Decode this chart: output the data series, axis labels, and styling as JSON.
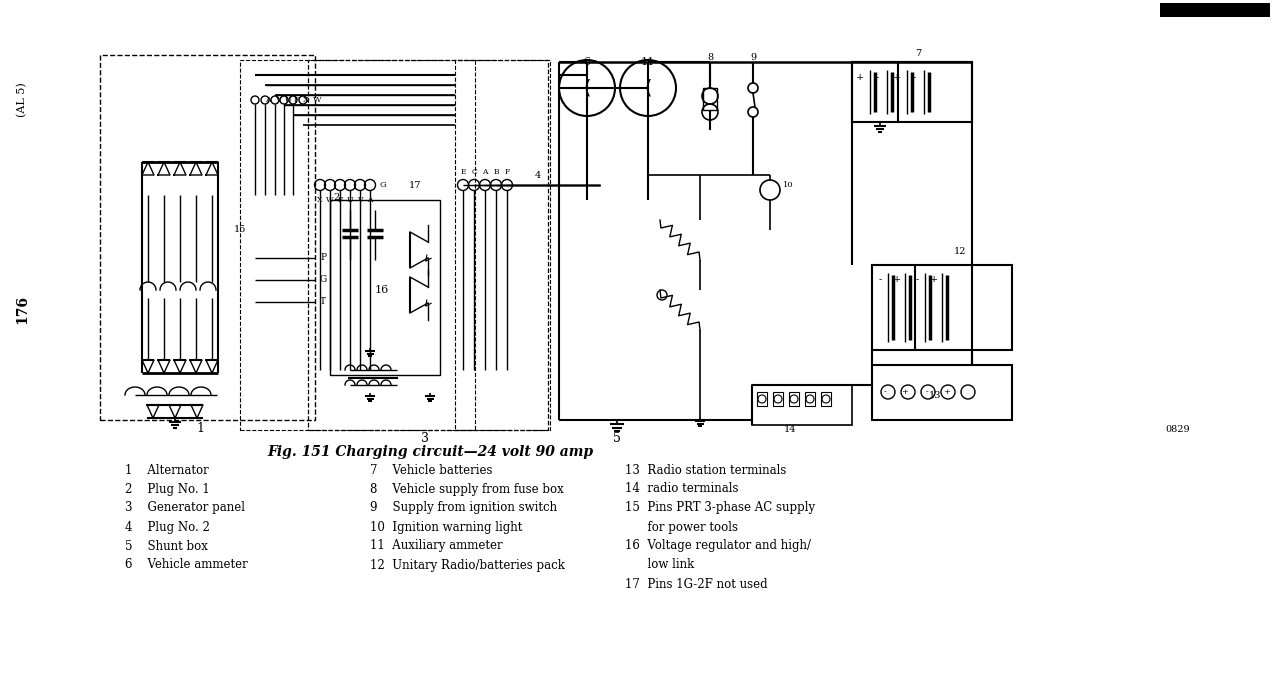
{
  "title": "Fig. 151 Charging circuit—24 volt 90 amp",
  "page_label": "176",
  "side_label": "(AL 5)",
  "bg_color": "#ffffff",
  "legend_col1": [
    "1    Alternator",
    "2    Plug No. 1",
    "3    Generator panel",
    "4    Plug No. 2",
    "5    Shunt box",
    "6    Vehicle ammeter"
  ],
  "legend_col2": [
    "7    Vehicle batteries",
    "8    Vehicle supply from fuse box",
    "9    Supply from ignition switch",
    "10  Ignition warning light",
    "11  Auxiliary ammeter",
    "12  Unitary Radio/batteries pack"
  ],
  "legend_col3": [
    "13  Radio station terminals",
    "14  radio terminals",
    "15  Pins PRT 3-phase AC supply",
    "      for power tools",
    "16  Voltage regulator and high/",
    "      low link",
    "17  Pins 1G-2F not used"
  ],
  "ref_code": "0829"
}
